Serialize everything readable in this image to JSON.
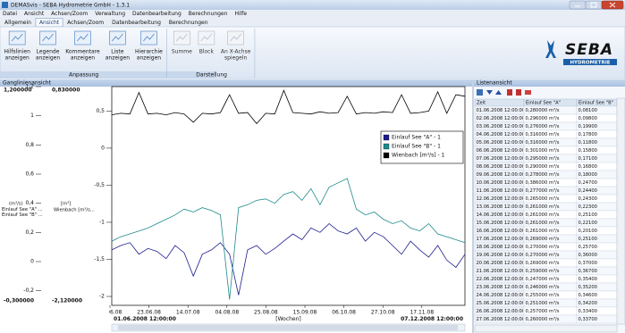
{
  "window": {
    "title": "DEMASvis - SEBA Hydrometrie GmbH - 1.3.1"
  },
  "menu": [
    "Datei",
    "Ansicht",
    "Achsen/Zoom",
    "Verwaltung",
    "Datenbearbeitung",
    "Berechnungen",
    "Hilfe"
  ],
  "tabs": {
    "items": [
      "Allgemein",
      "Ansicht",
      "Achsen/Zoom",
      "Datenbearbeitung",
      "Berechnungen"
    ],
    "active": 1
  },
  "ribbon": {
    "groups": [
      {
        "label": "Anpassung",
        "buttons": [
          [
            "Hilfslinien",
            "anzeigen"
          ],
          [
            "Legende",
            "anzeigen"
          ],
          [
            "Kommentare",
            "anzeigen"
          ],
          [
            "Liste",
            "anzeigen"
          ],
          [
            "Hierarchie",
            "anzeigen"
          ]
        ]
      },
      {
        "label": "Darstellung",
        "buttons": [
          [
            "Summe"
          ],
          [
            "Block"
          ],
          [
            "An X-Achse",
            "spiegeln"
          ]
        ]
      }
    ]
  },
  "logo": {
    "text": "SEBA",
    "subtext": "HYDROMETRIE"
  },
  "chart_panel": {
    "title": "Ganglinienansicht"
  },
  "chart_data": {
    "type": "line",
    "legend": "upper right",
    "series": [
      {
        "name": "Einlauf See \"A\" - 1",
        "color": "#1c1c8e",
        "values": [
          0.08,
          0.11,
          0.13,
          0.05,
          0.09,
          0.07,
          0.02,
          0.11,
          0.06,
          -0.1,
          0.05,
          0.08,
          0.13,
          0.05,
          -0.23,
          0.08,
          0.11,
          0.05,
          0.09,
          0.14,
          0.19,
          0.15,
          0.23,
          0.2,
          0.26,
          0.21,
          0.19,
          0.23,
          0.14,
          0.2,
          0.17,
          0.11,
          0.05,
          0.14,
          0.08,
          0.03,
          0.11,
          0.01,
          -0.04,
          0.05
        ]
      },
      {
        "name": "Einlauf See \"B\" - 1",
        "color": "#1d8a8a",
        "values": [
          0.14,
          0.17,
          0.19,
          0.21,
          0.23,
          0.26,
          0.29,
          0.32,
          0.36,
          0.34,
          0.37,
          0.35,
          0.32,
          -0.26,
          0.37,
          0.39,
          0.42,
          0.43,
          0.4,
          0.46,
          0.48,
          0.42,
          0.5,
          0.39,
          0.51,
          0.54,
          0.57,
          0.36,
          0.32,
          0.34,
          0.29,
          0.26,
          0.28,
          0.23,
          0.21,
          0.26,
          0.19,
          0.17,
          0.15,
          0.13
        ]
      },
      {
        "name": "Wienbach [m³/s] - 1",
        "color": "#000000",
        "axis": "y2",
        "values": [
          0.45,
          0.47,
          0.46,
          0.75,
          0.46,
          0.47,
          0.45,
          0.48,
          0.46,
          0.35,
          0.47,
          0.46,
          0.48,
          0.72,
          0.47,
          0.48,
          0.33,
          0.47,
          0.46,
          0.78,
          0.48,
          0.47,
          0.46,
          0.49,
          0.47,
          0.48,
          0.7,
          0.46,
          0.48,
          0.47,
          0.49,
          0.48,
          0.72,
          0.47,
          0.48,
          0.5,
          0.76,
          0.47,
          0.72,
          0.7
        ]
      }
    ],
    "ylim": [
      -0.3,
      1.2
    ],
    "ylim_labels": [
      "-0,300000",
      "1,200000"
    ],
    "y2lim": [
      -2.12,
      0.83
    ],
    "y2lim_labels": [
      "-2,120000",
      "0,830000"
    ],
    "yticks": [
      {
        "value": 1.2,
        "label": "1,2"
      },
      1,
      {
        "value": 0.8,
        "label": "0,8"
      },
      {
        "value": 0.6,
        "label": "0,6"
      },
      {
        "value": 0.4,
        "label": "0,4"
      },
      {
        "value": 0.2,
        "label": "0,2"
      },
      0,
      {
        "value": -0.2,
        "label": "-0,2"
      }
    ],
    "y2ticks": [
      {
        "value": 0.5,
        "label": "0,5"
      },
      0,
      {
        "value": -0.5,
        "label": "-0,5"
      },
      -1,
      {
        "value": -1.5,
        "label": "-1,5"
      },
      -2
    ],
    "y_unit": "(m³/s)",
    "y_series_labels": [
      "Einlauf See \"A\" ...",
      "Einlauf See \"B\" ..."
    ],
    "y2_unit": "[m³]",
    "y2_series_label": "Wienbach [m³/s...",
    "xticks": [
      "02.06.08",
      "23.06.08",
      "14.07.08",
      "04.08.08",
      "25.08.08",
      "15.09.08",
      "06.10.08",
      "27.10.08",
      "17.11.08"
    ],
    "x_start": "01.06.2008 12:00:00",
    "x_end": "07.12.2008 12:00:00",
    "xlabel": "[Wochen]"
  },
  "list_panel": {
    "title": "Listenansicht",
    "columns": [
      "Zeit",
      "Einlauf See \"A\"",
      "Einlauf See \"B\""
    ],
    "rows": [
      [
        "01.06.2008 12:00:00",
        "0,280000 m³/s",
        "0,08100"
      ],
      [
        "02.06.2008 12:00:00",
        "0,296000 m³/s",
        "0,09800"
      ],
      [
        "03.06.2008 12:00:00",
        "0,276000 m³/s",
        "0,19900"
      ],
      [
        "04.06.2008 12:00:00",
        "0,316000 m³/s",
        "0,17800"
      ],
      [
        "05.06.2008 12:00:00",
        "0,316000 m³/s",
        "0,11800"
      ],
      [
        "06.06.2008 12:00:00",
        "0,301000 m³/s",
        "0,15800"
      ],
      [
        "07.06.2008 12:00:00",
        "0,295000 m³/s",
        "0,17100"
      ],
      [
        "08.06.2008 12:00:00",
        "0,290000 m³/s",
        "0,16800"
      ],
      [
        "09.06.2008 12:00:00",
        "0,278000 m³/s",
        "0,18000"
      ],
      [
        "10.06.2008 12:00:00",
        "0,386000 m³/s",
        "0,24700"
      ],
      [
        "11.06.2008 12:00:00",
        "0,277000 m³/s",
        "0,24400"
      ],
      [
        "12.06.2008 12:00:00",
        "0,265000 m³/s",
        "0,24300"
      ],
      [
        "13.06.2008 12:00:00",
        "0,261000 m³/s",
        "0,22300"
      ],
      [
        "14.06.2008 12:00:00",
        "0,261000 m³/s",
        "0,25100"
      ],
      [
        "15.06.2008 12:00:00",
        "0,261000 m³/s",
        "0,22100"
      ],
      [
        "16.06.2008 12:00:00",
        "0,261000 m³/s",
        "0,20100"
      ],
      [
        "17.06.2008 12:00:00",
        "0,269000 m³/s",
        "0,25100"
      ],
      [
        "18.06.2008 12:00:00",
        "0,270000 m³/s",
        "0,25700"
      ],
      [
        "19.06.2008 12:00:00",
        "0,270000 m³/s",
        "0,36000"
      ],
      [
        "20.06.2008 12:00:00",
        "0,269000 m³/s",
        "0,37000"
      ],
      [
        "21.06.2008 12:00:00",
        "0,259000 m³/s",
        "0,36700"
      ],
      [
        "22.06.2008 12:00:00",
        "0,247000 m³/s",
        "0,35400"
      ],
      [
        "23.06.2008 12:00:00",
        "0,246000 m³/s",
        "0,35200"
      ],
      [
        "24.06.2008 12:00:00",
        "0,255000 m³/s",
        "0,34600"
      ],
      [
        "25.06.2008 12:00:00",
        "0,251000 m³/s",
        "0,34200"
      ],
      [
        "26.06.2008 12:00:00",
        "0,257000 m³/s",
        "0,33400"
      ],
      [
        "27.06.2008 12:00:00",
        "0,260000 m³/s",
        "0,33700"
      ]
    ]
  }
}
